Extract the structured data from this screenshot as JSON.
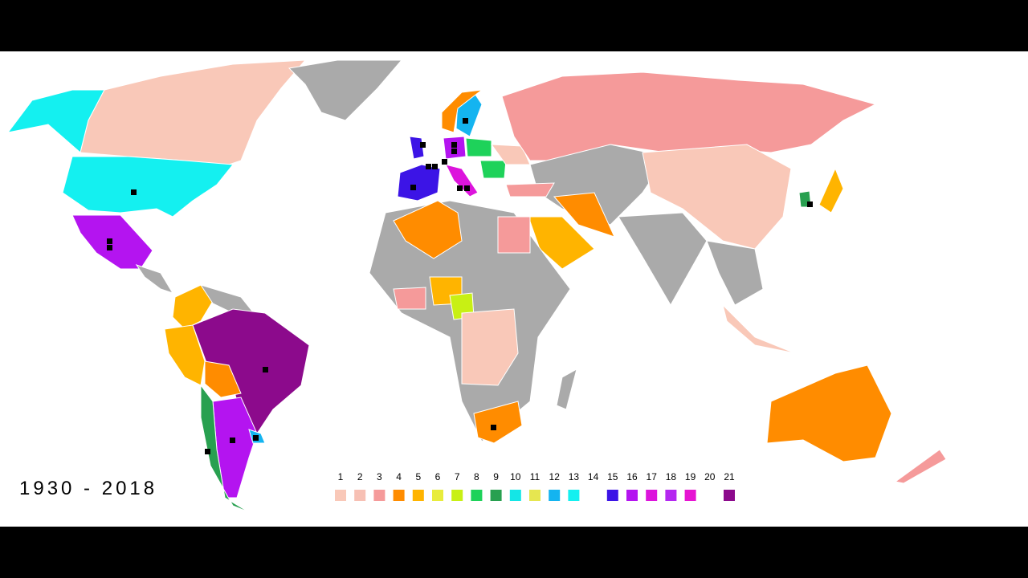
{
  "caption": "1930 - 2018",
  "legend": [
    {
      "label": 1,
      "color": "#f9c8b8"
    },
    {
      "label": 2,
      "color": "#f7c0b4"
    },
    {
      "label": 3,
      "color": "#f59a9a"
    },
    {
      "label": 4,
      "color": "#ff8c00"
    },
    {
      "label": 5,
      "color": "#ffb400"
    },
    {
      "label": 6,
      "color": "#e8ec3c"
    },
    {
      "label": 7,
      "color": "#c8f014"
    },
    {
      "label": 8,
      "color": "#1ed25a"
    },
    {
      "label": 9,
      "color": "#28a050"
    },
    {
      "label": 10,
      "color": "#14e6e6"
    },
    {
      "label": 11,
      "color": "#e6e650"
    },
    {
      "label": 12,
      "color": "#14b4f0"
    },
    {
      "label": 13,
      "color": "#14f0f0"
    },
    {
      "label": 14,
      "color": null
    },
    {
      "label": 15,
      "color": "#3c14e6"
    },
    {
      "label": 16,
      "color": "#b414f0"
    },
    {
      "label": 17,
      "color": "#dc14dc"
    },
    {
      "label": 18,
      "color": "#b428f0"
    },
    {
      "label": 19,
      "color": "#e614d2"
    },
    {
      "label": 20,
      "color": null
    },
    {
      "label": 21,
      "color": "#8c0a8c"
    }
  ]
}
